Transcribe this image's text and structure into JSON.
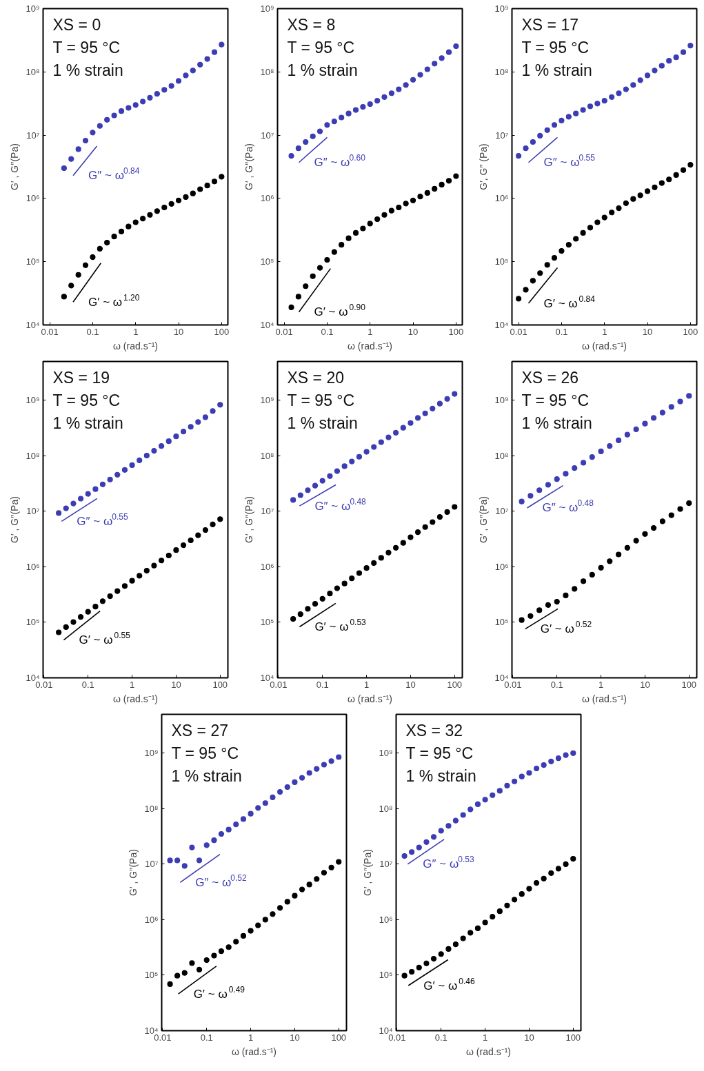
{
  "chart_data": [
    {
      "type": "scatter",
      "xlabel": "ω (rad.s⁻¹)",
      "ylabel": "G′ , G′′(Pa)",
      "log": "xy",
      "xlim": [
        0.007,
        140
      ],
      "ylim": [
        10000,
        1000000000
      ],
      "xticks": [
        0.01,
        0.1,
        1,
        10,
        100
      ],
      "yticks": [
        {
          "value": 10000,
          "label": "10⁴"
        },
        {
          "value": 100000,
          "label": "10⁵"
        },
        {
          "value": 1000000,
          "label": "10⁶"
        },
        {
          "value": 10000000,
          "label": "10⁷"
        },
        {
          "value": 100000000,
          "label": "10⁸"
        },
        {
          "value": 1000000000,
          "label": "10⁹"
        }
      ],
      "annotations": [
        "XS = 0",
        "T = 95 °C",
        "1 % strain",
        "G″ ~ ω$^{0.84}$",
        "G′ ~ ω$^{1.20}$"
      ],
      "series": [
        {
          "color": "#3c3cb4",
          "marker": "circle",
          "x": [
            0.0215,
            0.0316,
            0.0464,
            0.0681,
            0.1,
            0.147,
            0.215,
            0.316,
            0.464,
            0.681,
            1,
            1.47,
            2.15,
            3.16,
            4.64,
            6.81,
            10,
            14.7,
            21.5,
            31.6,
            46.4,
            68.1,
            100
          ],
          "values": [
            3000000.0,
            4200000.0,
            6000000.0,
            8200000.0,
            11000000.0,
            14000000.0,
            17500000.0,
            20500000.0,
            24000000.0,
            27000000.0,
            30000000.0,
            34000000.0,
            39000000.0,
            45000000.0,
            52000000.0,
            60000000.0,
            72000000.0,
            88000000.0,
            105000000.0,
            130000000.0,
            160000000.0,
            205000000.0,
            270000000.0
          ]
        },
        {
          "color": "#000000",
          "marker": "circle",
          "x": [
            0.0215,
            0.0316,
            0.0464,
            0.0681,
            0.1,
            0.147,
            0.215,
            0.316,
            0.464,
            0.681,
            1,
            1.47,
            2.15,
            3.16,
            4.64,
            6.81,
            10,
            14.7,
            21.5,
            31.6,
            46.4,
            68.1,
            100
          ],
          "values": [
            28000.0,
            42000.0,
            62000.0,
            88000.0,
            118000.0,
            160000.0,
            200000.0,
            250000.0,
            300000.0,
            360000.0,
            420000.0,
            480000.0,
            550000.0,
            630000.0,
            720000.0,
            820000.0,
            930000.0,
            1050000.0,
            1200000.0,
            1400000.0,
            1600000.0,
            1850000.0,
            2200000.0
          ]
        },
        {
          "type": "line",
          "marker": "none",
          "color": "#3c3cb4",
          "x": [
            0.035,
            0.125
          ],
          "values": [
            2300000.0,
            6700000.0
          ]
        },
        {
          "type": "line",
          "marker": "none",
          "color": "#000000",
          "x": [
            0.035,
            0.155
          ],
          "values": [
            23000.0,
            95000.0
          ]
        }
      ]
    },
    {
      "type": "scatter",
      "xlabel": "ω (rad.s⁻¹)",
      "ylabel": "G′ , G′′(Pa)",
      "log": "xy",
      "xlim": [
        0.007,
        140
      ],
      "ylim": [
        10000,
        1000000000
      ],
      "xticks": [
        0.01,
        0.1,
        1,
        10,
        100
      ],
      "yticks": [
        {
          "value": 10000,
          "label": "10⁴"
        },
        {
          "value": 100000,
          "label": "10⁵"
        },
        {
          "value": 1000000,
          "label": "10⁶"
        },
        {
          "value": 10000000,
          "label": "10⁷"
        },
        {
          "value": 100000000,
          "label": "10⁸"
        },
        {
          "value": 1000000000,
          "label": "10⁹"
        }
      ],
      "annotations": [
        "XS = 8",
        "T = 95 °C",
        "1 % strain",
        "G″ ~ ω$^{0.60}$",
        "G′ ~ ω$^{0.90}$"
      ],
      "series": [
        {
          "color": "#3c3cb4",
          "marker": "circle",
          "x": [
            0.0147,
            0.0215,
            0.0316,
            0.0464,
            0.0681,
            0.1,
            0.147,
            0.215,
            0.316,
            0.464,
            0.681,
            1,
            1.47,
            2.15,
            3.16,
            4.64,
            6.81,
            10,
            14.7,
            21.5,
            31.6,
            46.4,
            68.1,
            100
          ],
          "values": [
            4700000.0,
            6200000.0,
            7800000.0,
            9600000.0,
            11500000.0,
            14500000.0,
            16500000.0,
            19000000.0,
            22000000.0,
            25000000.0,
            28000000.0,
            31000000.0,
            35000000.0,
            40000000.0,
            46000000.0,
            53000000.0,
            62000000.0,
            75000000.0,
            90000000.0,
            110000000.0,
            135000000.0,
            165000000.0,
            205000000.0,
            255000000.0
          ]
        },
        {
          "color": "#000000",
          "marker": "circle",
          "x": [
            0.0147,
            0.0215,
            0.0316,
            0.0464,
            0.0681,
            0.1,
            0.147,
            0.215,
            0.316,
            0.464,
            0.681,
            1,
            1.47,
            2.15,
            3.16,
            4.64,
            6.81,
            10,
            14.7,
            21.5,
            31.6,
            46.4,
            68.1,
            100
          ],
          "values": [
            19000.0,
            28000.0,
            41000.0,
            59000.0,
            80000.0,
            107000.0,
            142000.0,
            185000.0,
            235000.0,
            285000.0,
            335000.0,
            400000.0,
            470000.0,
            550000.0,
            640000.0,
            720000.0,
            830000.0,
            930000.0,
            1070000.0,
            1220000.0,
            1420000.0,
            1650000.0,
            1900000.0,
            2250000.0
          ]
        },
        {
          "type": "line",
          "marker": "none",
          "color": "#3c3cb4",
          "x": [
            0.022,
            0.1
          ],
          "values": [
            3700000.0,
            9200000.0
          ]
        },
        {
          "type": "line",
          "marker": "none",
          "color": "#000000",
          "x": [
            0.022,
            0.12
          ],
          "values": [
            16000.0,
            78000.0
          ]
        }
      ]
    },
    {
      "type": "scatter",
      "xlabel": "ω (rad.s⁻¹)",
      "ylabel": "G′, G″ (Pa)",
      "log": "xy",
      "xlim": [
        0.007,
        140
      ],
      "ylim": [
        10000,
        1000000000
      ],
      "xticks": [
        0.01,
        0.1,
        1,
        10,
        100
      ],
      "yticks": [
        {
          "value": 10000,
          "label": "10⁴"
        },
        {
          "value": 100000,
          "label": "10⁵"
        },
        {
          "value": 1000000,
          "label": "10⁶"
        },
        {
          "value": 10000000,
          "label": "10⁷"
        },
        {
          "value": 100000000,
          "label": "10⁸"
        },
        {
          "value": 1000000000,
          "label": "10⁹"
        }
      ],
      "annotations": [
        "XS = 17",
        "T = 95 °C",
        "1 % strain",
        "G″ ~ ω$^{0.55}$",
        "G′ ~ ω$^{0.84}$"
      ],
      "series": [
        {
          "color": "#3c3cb4",
          "marker": "circle",
          "x": [
            0.01,
            0.0147,
            0.0215,
            0.0316,
            0.0464,
            0.0681,
            0.1,
            0.147,
            0.215,
            0.316,
            0.464,
            0.681,
            1,
            1.47,
            2.15,
            3.16,
            4.64,
            6.81,
            10,
            14.7,
            21.5,
            31.6,
            46.4,
            68.1,
            100
          ],
          "values": [
            4700000.0,
            6200000.0,
            7800000.0,
            9800000.0,
            12000000.0,
            14500000.0,
            17000000.0,
            19500000.0,
            22000000.0,
            25000000.0,
            28500000.0,
            31500000.0,
            35000000.0,
            40000000.0,
            46000000.0,
            53000000.0,
            62000000.0,
            74000000.0,
            88000000.0,
            105000000.0,
            125000000.0,
            150000000.0,
            170000000.0,
            205000000.0,
            260000000.0
          ]
        },
        {
          "color": "#000000",
          "marker": "circle",
          "x": [
            0.01,
            0.0147,
            0.0215,
            0.0316,
            0.0464,
            0.0681,
            0.1,
            0.147,
            0.215,
            0.316,
            0.464,
            0.681,
            1,
            1.47,
            2.15,
            3.16,
            4.64,
            6.81,
            10,
            14.7,
            21.5,
            31.6,
            46.4,
            68.1,
            100
          ],
          "values": [
            26000.0,
            36000.0,
            50000.0,
            66000.0,
            89000.0,
            115000.0,
            148000.0,
            185000.0,
            230000.0,
            285000.0,
            345000.0,
            420000.0,
            500000.0,
            600000.0,
            700000.0,
            840000.0,
            980000.0,
            1120000.0,
            1300000.0,
            1500000.0,
            1750000.0,
            2000000.0,
            2350000.0,
            2800000.0,
            3400000.0
          ]
        },
        {
          "type": "line",
          "marker": "none",
          "color": "#3c3cb4",
          "x": [
            0.017,
            0.08
          ],
          "values": [
            3700000.0,
            9200000.0
          ]
        },
        {
          "type": "line",
          "marker": "none",
          "color": "#000000",
          "x": [
            0.017,
            0.08
          ],
          "values": [
            22000.0,
            80000.0
          ]
        }
      ]
    },
    {
      "type": "scatter",
      "xlabel": "ω (rad.s⁻¹)",
      "ylabel": "G′ , G′′(Pa)",
      "log": "xy",
      "xlim": [
        0.0095,
        150
      ],
      "ylim": [
        10000,
        5000000000
      ],
      "xticks": [
        0.01,
        0.1,
        1,
        10,
        100
      ],
      "yticks": [
        {
          "value": 10000,
          "label": "10⁴"
        },
        {
          "value": 100000,
          "label": "10⁵"
        },
        {
          "value": 1000000,
          "label": "10⁶"
        },
        {
          "value": 10000000,
          "label": "10⁷"
        },
        {
          "value": 100000000,
          "label": "10⁸"
        },
        {
          "value": 1000000000,
          "label": "10⁹"
        }
      ],
      "annotations": [
        "XS = 19",
        "T = 95 °C",
        "1 % strain",
        "G″ ~ ω$^{0.55}$",
        "G′ ~ ω$^{0.55}$"
      ],
      "series": [
        {
          "color": "#3c3cb4",
          "marker": "circle",
          "x": [
            0.0215,
            0.0316,
            0.0464,
            0.0681,
            0.1,
            0.147,
            0.215,
            0.316,
            0.464,
            0.681,
            1,
            1.47,
            2.15,
            3.16,
            4.64,
            6.81,
            10,
            14.7,
            21.5,
            31.6,
            46.4,
            68.1,
            100
          ],
          "values": [
            9300000.0,
            11300000.0,
            13800000.0,
            16900000.0,
            20600000.0,
            25100000.0,
            30600000.0,
            37400000.0,
            45600000.0,
            55600000.0,
            67800000.0,
            82800000.0,
            101000000.0,
            123000000.0,
            150000000.0,
            183000000.0,
            224000000.0,
            273000000.0,
            333000000.0,
            406000000.0,
            495000000.0,
            640000000.0,
            830000000.0
          ]
        },
        {
          "color": "#000000",
          "marker": "circle",
          "x": [
            0.0215,
            0.0316,
            0.0464,
            0.0681,
            0.1,
            0.147,
            0.215,
            0.316,
            0.464,
            0.681,
            1,
            1.47,
            2.15,
            3.16,
            4.64,
            6.81,
            10,
            14.7,
            21.5,
            31.6,
            46.4,
            68.1,
            100
          ],
          "values": [
            66000.0,
            82000.0,
            101000.0,
            125000.0,
            155000.0,
            192000.0,
            240000.0,
            295000.0,
            365000.0,
            450000.0,
            560000.0,
            690000.0,
            850000.0,
            1050000.0,
            1300000.0,
            1600000.0,
            2000000.0,
            2450000.0,
            3000000.0,
            3700000.0,
            4600000.0,
            5800000.0,
            7200000.0
          ]
        },
        {
          "type": "line",
          "marker": "none",
          "color": "#3c3cb4",
          "x": [
            0.025,
            0.16
          ],
          "values": [
            6600000.0,
            17000000.0
          ]
        },
        {
          "type": "line",
          "marker": "none",
          "color": "#000000",
          "x": [
            0.028,
            0.187
          ],
          "values": [
            48000.0,
            160000.0
          ]
        }
      ]
    },
    {
      "type": "scatter",
      "xlabel": "ω (rad.s⁻¹)",
      "ylabel": "G′ , G′′(Pa)",
      "log": "xy",
      "xlim": [
        0.0095,
        150
      ],
      "ylim": [
        10000,
        5000000000
      ],
      "xticks": [
        0.01,
        0.1,
        1,
        10,
        100
      ],
      "yticks": [
        {
          "value": 10000,
          "label": "10⁴"
        },
        {
          "value": 100000,
          "label": "10⁵"
        },
        {
          "value": 1000000,
          "label": "10⁶"
        },
        {
          "value": 10000000,
          "label": "10⁷"
        },
        {
          "value": 100000000,
          "label": "10⁸"
        },
        {
          "value": 1000000000,
          "label": "10⁹"
        }
      ],
      "annotations": [
        "XS = 20",
        "T = 95 °C",
        "1 % strain",
        "G″ ~ ω$^{0.48}$",
        "G′ ~ ω$^{0.53}$"
      ],
      "series": [
        {
          "color": "#3c3cb4",
          "marker": "circle",
          "x": [
            0.0215,
            0.0316,
            0.0464,
            0.0681,
            0.1,
            0.147,
            0.215,
            0.316,
            0.464,
            0.681,
            1,
            1.47,
            2.15,
            3.16,
            4.64,
            6.81,
            10,
            14.7,
            21.5,
            31.6,
            46.4,
            68.1,
            100
          ],
          "values": [
            16000000.0,
            19500000.0,
            24000000.0,
            29000000.0,
            35500000.0,
            43000000.0,
            53000000.0,
            65000000.0,
            79000000.0,
            96000000.0,
            118000000.0,
            144000000.0,
            176000000.0,
            215000000.0,
            260000000.0,
            320000000.0,
            390000000.0,
            480000000.0,
            580000000.0,
            710000000.0,
            870000000.0,
            1060000000.0,
            1300000000.0
          ]
        },
        {
          "color": "#000000",
          "marker": "circle",
          "x": [
            0.0215,
            0.0316,
            0.0464,
            0.0681,
            0.1,
            0.147,
            0.215,
            0.316,
            0.464,
            0.681,
            1,
            1.47,
            2.15,
            3.16,
            4.64,
            6.81,
            10,
            14.7,
            21.5,
            31.6,
            46.4,
            68.1,
            100
          ],
          "values": [
            115000.0,
            140000.0,
            175000.0,
            215000.0,
            265000.0,
            330000.0,
            410000.0,
            500000.0,
            620000.0,
            770000.0,
            950000.0,
            1170000.0,
            1450000.0,
            1800000.0,
            2200000.0,
            2700000.0,
            3400000.0,
            4200000.0,
            5200000.0,
            6400000.0,
            7900000.0,
            9700000.0,
            12000000.0
          ]
        },
        {
          "type": "line",
          "marker": "none",
          "color": "#3c3cb4",
          "x": [
            0.03,
            0.2
          ],
          "values": [
            12500000.0,
            30000000.0
          ]
        },
        {
          "type": "line",
          "marker": "none",
          "color": "#000000",
          "x": [
            0.03,
            0.2
          ],
          "values": [
            83000.0,
            220000.0
          ]
        }
      ]
    },
    {
      "type": "scatter",
      "xlabel": "ω (rad.s⁻¹)",
      "ylabel": "G′ , G′′(Pa)",
      "log": "xy",
      "xlim": [
        0.0095,
        150
      ],
      "ylim": [
        10000,
        5000000000
      ],
      "xticks": [
        0.01,
        0.1,
        1,
        10,
        100
      ],
      "yticks": [
        {
          "value": 10000,
          "label": "10⁴"
        },
        {
          "value": 100000,
          "label": "10⁵"
        },
        {
          "value": 1000000,
          "label": "10⁶"
        },
        {
          "value": 10000000,
          "label": "10⁷"
        },
        {
          "value": 100000000,
          "label": "10⁸"
        },
        {
          "value": 1000000000,
          "label": "10⁹"
        }
      ],
      "annotations": [
        "XS = 26",
        "T = 95 °C",
        "1 % strain",
        "G″ ~ ω$^{0.48}$",
        "G′ ~ ω$^{0.52}$"
      ],
      "series": [
        {
          "color": "#3c3cb4",
          "marker": "circle",
          "x": [
            0.0158,
            0.0251,
            0.0398,
            0.0631,
            0.1,
            0.158,
            0.251,
            0.398,
            0.631,
            1,
            1.58,
            2.51,
            3.98,
            6.31,
            10,
            15.8,
            25.1,
            39.8,
            63.1,
            100
          ],
          "values": [
            15000000.0,
            19000000.0,
            24000000.0,
            30000000.0,
            38000000.0,
            47500000.0,
            60000000.0,
            75000000.0,
            95000000.0,
            120000000.0,
            150000000.0,
            190000000.0,
            240000000.0,
            300000000.0,
            380000000.0,
            480000000.0,
            600000000.0,
            760000000.0,
            950000000.0,
            1200000000.0
          ]
        },
        {
          "color": "#000000",
          "marker": "circle",
          "x": [
            0.0158,
            0.0251,
            0.0398,
            0.0631,
            0.1,
            0.158,
            0.251,
            0.398,
            0.631,
            1,
            1.58,
            2.51,
            3.98,
            6.31,
            10,
            15.8,
            25.1,
            39.8,
            63.1,
            100
          ],
          "values": [
            110000.0,
            130000.0,
            165000.0,
            205000.0,
            235000.0,
            305000.0,
            400000.0,
            550000.0,
            720000.0,
            960000.0,
            1260000.0,
            1670000.0,
            2200000.0,
            2950000.0,
            3900000.0,
            5000000.0,
            6600000.0,
            8500000.0,
            11000000.0,
            14000000.0
          ]
        },
        {
          "type": "line",
          "marker": "none",
          "color": "#3c3cb4",
          "x": [
            0.021,
            0.137
          ],
          "values": [
            11500000.0,
            29000000.0
          ]
        },
        {
          "type": "line",
          "marker": "none",
          "color": "#000000",
          "x": [
            0.019,
            0.105
          ],
          "values": [
            76000.0,
            175000.0
          ]
        }
      ]
    },
    {
      "type": "scatter",
      "xlabel": "ω (rad.s⁻¹)",
      "ylabel": "G′ , G′′(Pa)",
      "log": "xy",
      "xlim": [
        0.0095,
        150
      ],
      "ylim": [
        10000,
        5000000000
      ],
      "xticks": [
        0.01,
        0.1,
        1,
        10,
        100
      ],
      "yticks": [
        {
          "value": 10000,
          "label": "10⁴"
        },
        {
          "value": 100000,
          "label": "10⁵"
        },
        {
          "value": 1000000,
          "label": "10⁶"
        },
        {
          "value": 10000000,
          "label": "10⁷"
        },
        {
          "value": 100000000,
          "label": "10⁸"
        },
        {
          "value": 1000000000,
          "label": "10⁹"
        }
      ],
      "annotations": [
        "XS = 27",
        "T = 95 °C",
        "1 % strain",
        "G″ ~ ω$^{0.52}$",
        "G′ ~ ω$^{0.49}$"
      ],
      "series": [
        {
          "color": "#3c3cb4",
          "marker": "circle",
          "x": [
            0.0147,
            0.0215,
            0.0316,
            0.0464,
            0.0681,
            0.1,
            0.147,
            0.215,
            0.316,
            0.464,
            0.681,
            1,
            1.47,
            2.15,
            3.16,
            4.64,
            6.81,
            10,
            14.7,
            21.5,
            31.6,
            46.4,
            68.1,
            100
          ],
          "values": [
            11700000.0,
            11700000.0,
            9300000.0,
            20000000.0,
            11700000.0,
            22000000.0,
            27000000.0,
            35000000.0,
            42000000.0,
            52000000.0,
            65000000.0,
            81000000.0,
            103000000.0,
            126000000.0,
            160000000.0,
            200000000.0,
            245000000.0,
            300000000.0,
            360000000.0,
            440000000.0,
            520000000.0,
            620000000.0,
            720000000.0,
            850000000.0
          ]
        },
        {
          "color": "#000000",
          "marker": "circle",
          "x": [
            0.0147,
            0.0215,
            0.0316,
            0.0464,
            0.0681,
            0.1,
            0.147,
            0.215,
            0.316,
            0.464,
            0.681,
            1,
            1.47,
            2.15,
            3.16,
            4.64,
            6.81,
            10,
            14.7,
            21.5,
            31.6,
            46.4,
            68.1,
            100
          ],
          "values": [
            69000.0,
            98000.0,
            110000.0,
            165000.0,
            126000.0,
            187000.0,
            225000.0,
            270000.0,
            320000.0,
            400000.0,
            510000.0,
            630000.0,
            790000.0,
            1000000.0,
            1260000.0,
            1630000.0,
            2100000.0,
            2700000.0,
            3500000.0,
            4300000.0,
            5400000.0,
            7000000.0,
            8700000.0,
            11000000.0
          ]
        },
        {
          "type": "line",
          "marker": "none",
          "color": "#3c3cb4",
          "x": [
            0.025,
            0.2
          ],
          "values": [
            4700000.0,
            15000000.0
          ]
        },
        {
          "type": "line",
          "marker": "none",
          "color": "#000000",
          "x": [
            0.0227,
            0.166
          ],
          "values": [
            46000.0,
            145000.0
          ]
        }
      ]
    },
    {
      "type": "scatter",
      "xlabel": "ω (rad.s⁻¹)",
      "ylabel": "G′ , G′′(Pa)",
      "log": "xy",
      "xlim": [
        0.0095,
        150
      ],
      "ylim": [
        10000,
        5000000000
      ],
      "xticks": [
        0.01,
        0.1,
        1,
        10,
        100
      ],
      "yticks": [
        {
          "value": 10000,
          "label": "10⁴"
        },
        {
          "value": 100000,
          "label": "10⁵"
        },
        {
          "value": 1000000,
          "label": "10⁶"
        },
        {
          "value": 10000000,
          "label": "10⁷"
        },
        {
          "value": 100000000,
          "label": "10⁸"
        },
        {
          "value": 1000000000,
          "label": "10⁹"
        }
      ],
      "annotations": [
        "XS = 32",
        "T = 95 °C",
        "1 % strain",
        "G″ ~ ω$^{0.53}$",
        "G′ ~ ω$^{0.46}$"
      ],
      "series": [
        {
          "color": "#3c3cb4",
          "marker": "circle",
          "x": [
            0.0147,
            0.0215,
            0.0316,
            0.0464,
            0.0681,
            0.1,
            0.147,
            0.215,
            0.316,
            0.464,
            0.681,
            1,
            1.47,
            2.15,
            3.16,
            4.64,
            6.81,
            10,
            14.7,
            21.5,
            31.6,
            46.4,
            68.1,
            100
          ],
          "values": [
            14000000.0,
            16500000.0,
            20000000.0,
            25000000.0,
            31000000.0,
            40000000.0,
            49000000.0,
            61000000.0,
            77000000.0,
            97000000.0,
            120000000.0,
            145000000.0,
            175000000.0,
            210000000.0,
            260000000.0,
            310000000.0,
            380000000.0,
            440000000.0,
            530000000.0,
            610000000.0,
            710000000.0,
            810000000.0,
            920000000.0,
            1000000000.0
          ]
        },
        {
          "color": "#000000",
          "marker": "circle",
          "x": [
            0.0147,
            0.0215,
            0.0316,
            0.0464,
            0.0681,
            0.1,
            0.147,
            0.215,
            0.316,
            0.464,
            0.681,
            1,
            1.47,
            2.15,
            3.16,
            4.64,
            6.81,
            10,
            14.7,
            21.5,
            31.6,
            46.4,
            68.1,
            100
          ],
          "values": [
            98000.0,
            115000.0,
            137000.0,
            163000.0,
            198000.0,
            240000.0,
            297000.0,
            360000.0,
            460000.0,
            580000.0,
            700000.0,
            890000.0,
            1130000.0,
            1420000.0,
            1800000.0,
            2300000.0,
            2900000.0,
            3600000.0,
            4600000.0,
            5500000.0,
            6900000.0,
            8300000.0,
            10000000.0,
            12500000.0
          ]
        },
        {
          "type": "line",
          "marker": "none",
          "color": "#3c3cb4",
          "x": [
            0.0174,
            0.117
          ],
          "values": [
            10000000.0,
            28000000.0
          ]
        },
        {
          "type": "line",
          "marker": "none",
          "color": "#000000",
          "x": [
            0.018,
            0.144
          ],
          "values": [
            65000.0,
            190000.0
          ]
        }
      ]
    }
  ]
}
